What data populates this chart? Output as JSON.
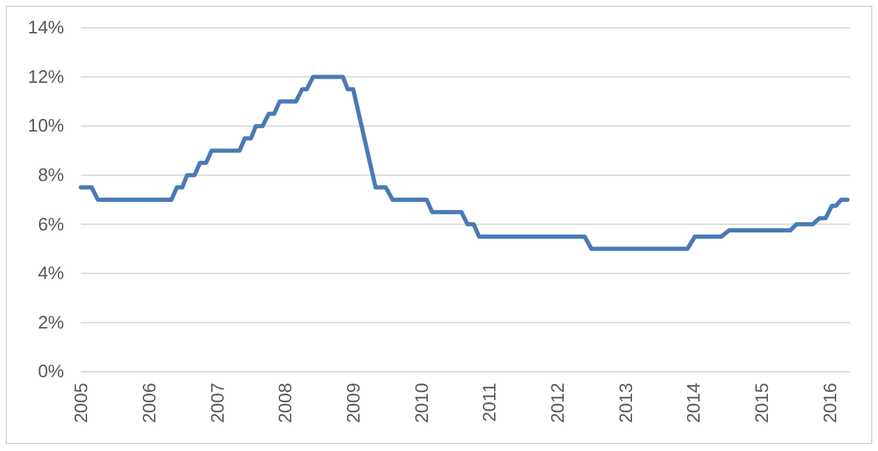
{
  "chart_data": {
    "type": "line",
    "xlim": [
      2005,
      2016.3
    ],
    "xticks": [
      2005,
      2006,
      2007,
      2008,
      2009,
      2010,
      2011,
      2012,
      2013,
      2014,
      2015,
      2016
    ],
    "ylim": [
      0,
      14
    ],
    "yticks": [
      {
        "value": 0,
        "label": "0%"
      },
      {
        "value": 2,
        "label": "2%"
      },
      {
        "value": 4,
        "label": "4%"
      },
      {
        "value": 6,
        "label": "6%"
      },
      {
        "value": 8,
        "label": "8%"
      },
      {
        "value": 10,
        "label": "10%"
      },
      {
        "value": 12,
        "label": "12%"
      },
      {
        "value": 14,
        "label": "14%"
      }
    ],
    "grid": "y",
    "x": [
      2005,
      2005.16,
      2005.25,
      2006.33,
      2006.41,
      2006.49,
      2006.56,
      2006.67,
      2006.75,
      2006.84,
      2006.92,
      2007.33,
      2007.41,
      2007.5,
      2007.57,
      2007.67,
      2007.76,
      2007.84,
      2007.92,
      2008.16,
      2008.25,
      2008.32,
      2008.41,
      2008.85,
      2008.92,
      2009,
      2009.33,
      2009.48,
      2009.58,
      2010.08,
      2010.16,
      2010.59,
      2010.68,
      2010.77,
      2010.85,
      2012.4,
      2012.5,
      2013.91,
      2014.02,
      2014.41,
      2014.52,
      2015.42,
      2015.51,
      2015.75,
      2015.85,
      2015.94,
      2016.03,
      2016.09,
      2016.17,
      2016.26
    ],
    "series": [
      {
        "color": "#4a7ab5",
        "values": [
          7.5,
          7.5,
          7,
          7,
          7.5,
          7.5,
          8,
          8,
          8.5,
          8.5,
          9,
          9,
          9.5,
          9.5,
          10,
          10,
          10.5,
          10.5,
          11,
          11,
          11.5,
          11.5,
          12,
          12,
          11.5,
          11.5,
          7.5,
          7.5,
          7,
          7,
          6.5,
          6.5,
          6,
          6,
          5.5,
          5.5,
          5,
          5,
          5.5,
          5.5,
          5.75,
          5.75,
          6,
          6,
          6.25,
          6.25,
          6.75,
          6.75,
          7,
          7
        ]
      }
    ]
  }
}
